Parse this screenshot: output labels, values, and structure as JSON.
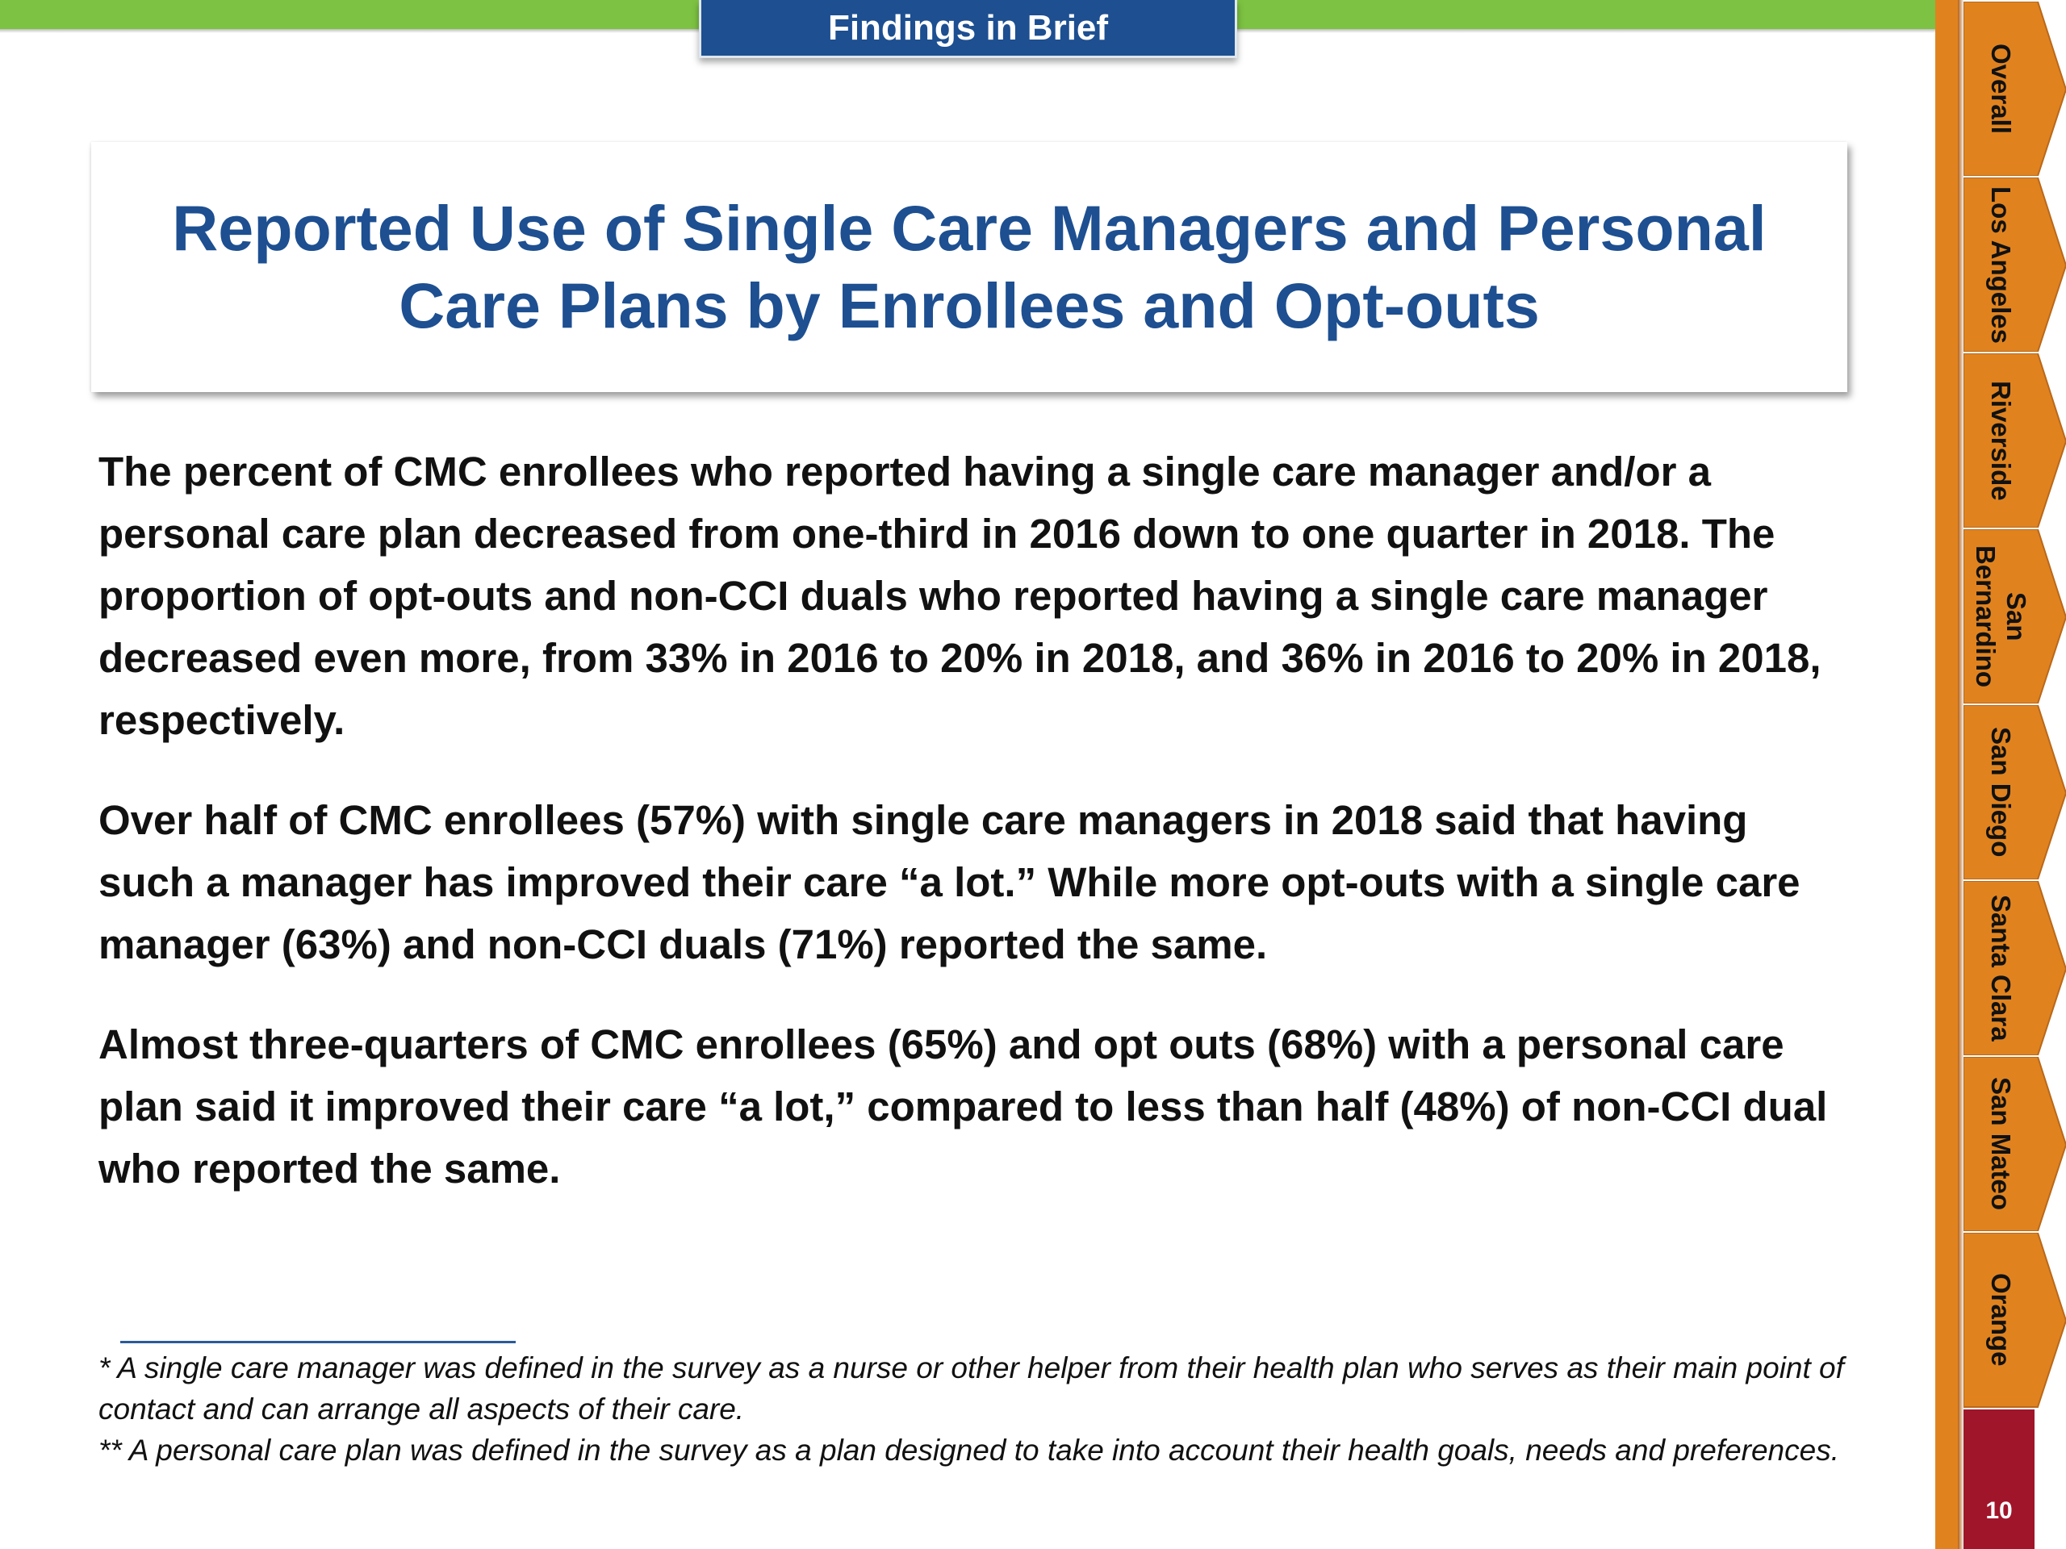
{
  "header": {
    "tab_label": "Findings in Brief"
  },
  "title": "Reported Use of Single Care Managers and Personal Care Plans by Enrollees and Opt-outs",
  "paragraphs": [
    "The percent of CMC enrollees who reported having a single care manager and/or a personal care plan decreased from one-third in 2016 down to one quarter in 2018. The proportion of opt-outs and non-CCI duals who reported having a single care manager decreased even more, from 33% in 2016 to 20% in 2018, and 36% in 2016 to 20% in 2018, respectively.",
    "Over half of CMC enrollees (57%) with single care managers in 2018 said that having such a manager has improved their care “a lot.” While more opt-outs with a single care manager (63%) and non-CCI duals (71%) reported the same.",
    "Almost three-quarters of CMC enrollees (65%) and opt outs (68%) with a personal care plan said it improved their care “a lot,” compared to less than half (48%) of non-CCI dual who reported the same."
  ],
  "footnotes": [
    "* A single care manager was defined in the survey as a nurse or other helper from their health plan who serves as their main point of contact and can arrange all aspects of their care.",
    "** A personal care plan was defined in the survey as a plan designed to take into account their health goals, needs and preferences."
  ],
  "side_nav": [
    {
      "label": "Overall"
    },
    {
      "label": "Los Angeles"
    },
    {
      "label": "Riverside"
    },
    {
      "label": "San Bernardino"
    },
    {
      "label": "San Diego"
    },
    {
      "label": "Santa Clara"
    },
    {
      "label": "San Mateo"
    },
    {
      "label": "Orange"
    }
  ],
  "page_number": "10",
  "colors": {
    "band_green": "#7dc242",
    "header_blue": "#1d4f91",
    "nav_orange": "#e0831f",
    "page_red": "#a0152a"
  }
}
